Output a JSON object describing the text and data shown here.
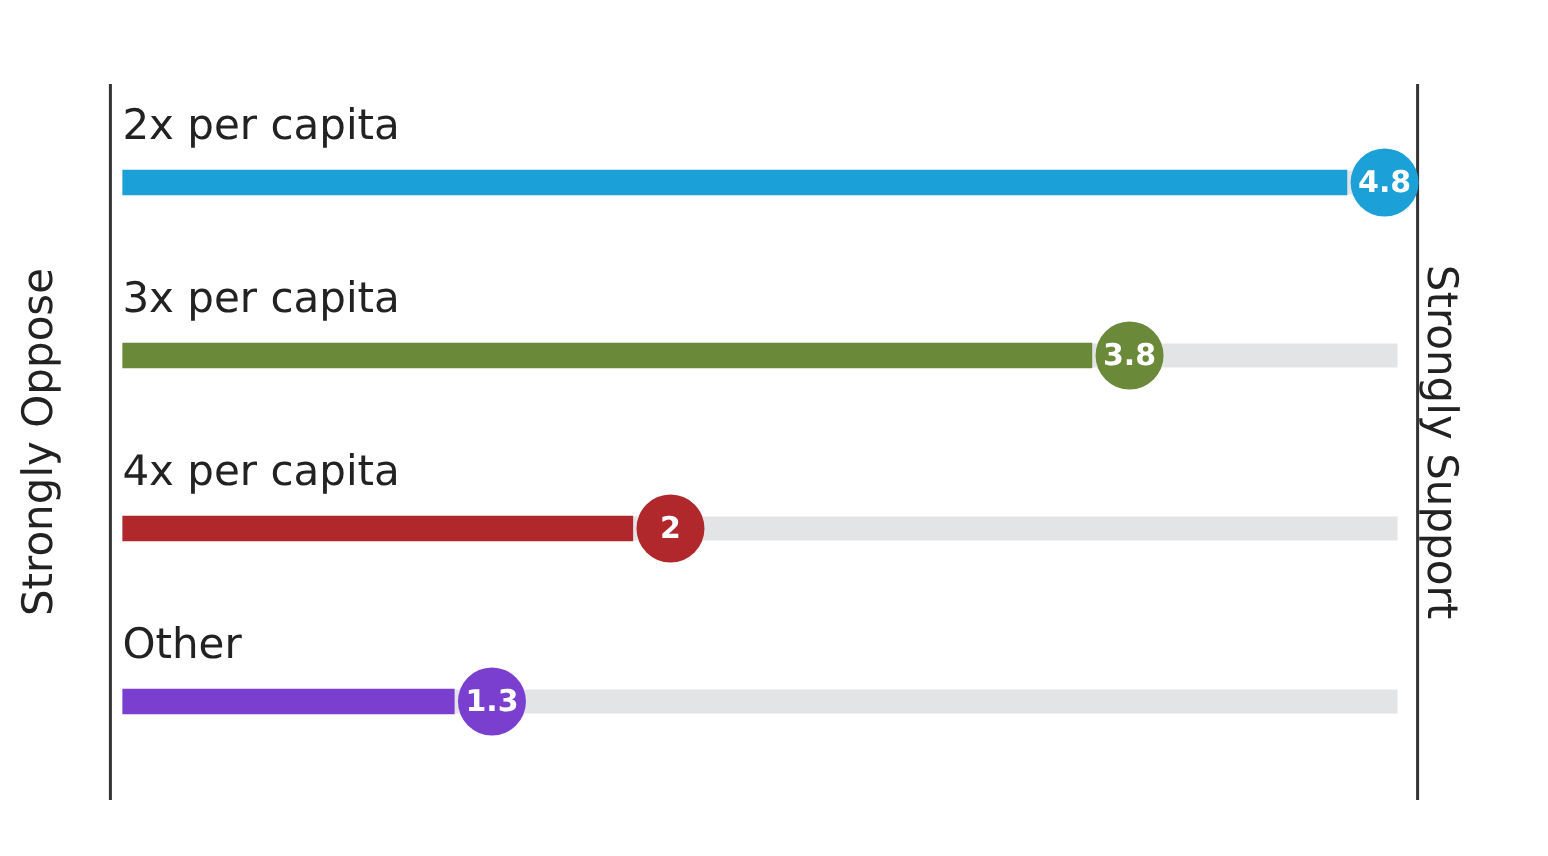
{
  "chart_data": {
    "type": "bar",
    "orientation": "horizontal",
    "categories": [
      "2x per capita",
      "3x per capita",
      "4x per capita",
      "Other"
    ],
    "values": [
      4.8,
      3.8,
      2,
      1.3
    ],
    "colors": [
      "#1ba1d8",
      "#6a8a3a",
      "#b0282c",
      "#7a3fcf"
    ],
    "tick_labels": false,
    "grid": false,
    "legend": false,
    "data_labels": true,
    "ylabel": "Strongly Oppose",
    "y2label": "Strongly Support"
  }
}
